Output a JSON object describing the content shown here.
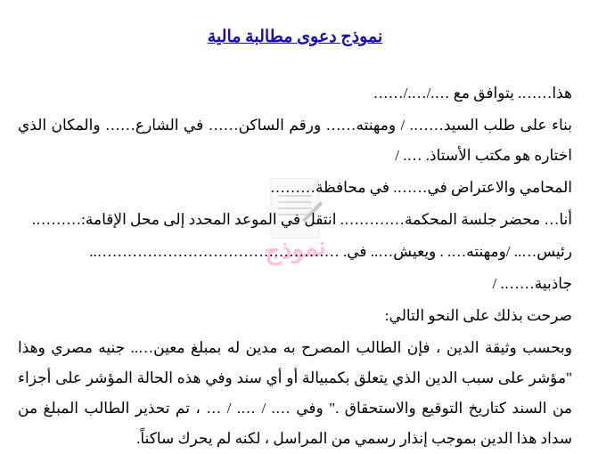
{
  "title": "نموذج دعوى مطالبة مالية",
  "paragraphs": {
    "p1": "هذا……. يتوافق مع …./…./……",
    "p2": "بناء على طلب السيد……. / ومهنته……  ورقم الساكن…… في الشارع…… والمكان الذي اختاره هو مكتب الأستاذ. …. /",
    "p3": "المحامي والاعتراض في……. في محافظة………",
    "p4": "أنا… محضر جلسة المحكمة…………. انتقل في الموعد المحدد إلى محل الإقامة:……….",
    "p5": "رئيس….. /ومهنته…. . ويعيش….. في. …………………………………………..",
    "p6": "جاذبية……. /",
    "p7": "صرحت بذلك على النحو التالي:",
    "p8": "وبحسب وثيقة الدين ، فإن الطالب المصرح به مدين له بمبلغ معين….. جنيه مصري وهذا \"مؤشر على سبب الدين الذي يتعلق بكمبيالة أو أي سند وفي هذه الحالة المؤشر على أجزاء من السند كتاريخ التوقيع والاستحقاق .\" وفي …. / …. / … ، تم تحذير الطالب المبلغ من سداد هذا الدين بموجب إنذار رسمي من المراسل ، لكنه لم يحرك ساكناً."
  },
  "watermark": {
    "text": "نموذج",
    "color": "#ff4da6"
  },
  "styles": {
    "title_color": "#1a0dab",
    "text_color": "#000000",
    "background": "#ffffff",
    "title_fontsize": 19,
    "body_fontsize": 17
  }
}
